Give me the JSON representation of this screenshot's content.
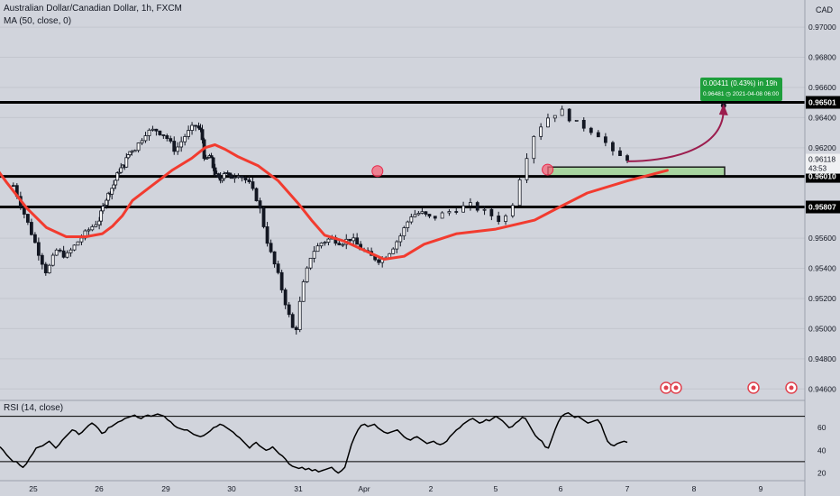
{
  "header": {
    "title": "Australian Dollar/Canadian Dollar, 1h, FXCM",
    "ma_label": "MA (50, close, 0)",
    "rsi_label": "RSI (14, close)",
    "currency": "CAD"
  },
  "colors": {
    "background": "#d1d4dc",
    "ma_line": "#f23b2f",
    "candle": "#131722",
    "level_line": "#000000",
    "zone_fill": "#a8d5a0",
    "zone_border": "#1a1a1a",
    "projection_arrow": "#9c1d4e",
    "measure_box": "#1e9e3c",
    "rsi_line": "#000000"
  },
  "measure": {
    "line1": "0.00411 (0.43%) in 19h",
    "line2": "0.96481",
    "line2_extra": "2021-04-08  06:00"
  },
  "chart_data": [
    {
      "type": "candlestick",
      "title": "Australian Dollar/Canadian Dollar, 1h, FXCM",
      "x_tick_labels": [
        "25",
        "26",
        "29",
        "30",
        "31",
        "Apr",
        "2",
        "5",
        "6",
        "7",
        "8",
        "9"
      ],
      "y_tick_labels": [
        "0.97000",
        "0.96800",
        "0.96600",
        "0.96400",
        "0.96200",
        "0.95600",
        "0.95400",
        "0.95200",
        "0.95000",
        "0.94800",
        "0.94600"
      ],
      "y_ticks": [
        0.97,
        0.968,
        0.966,
        0.964,
        0.962,
        0.956,
        0.954,
        0.952,
        0.95,
        0.948,
        0.946
      ],
      "ylim": [
        0.9453,
        0.9718
      ],
      "horizontal_levels": [
        {
          "value": 0.96501,
          "label": "0.96501"
        },
        {
          "value": 0.9601,
          "label": "0.96010"
        },
        {
          "value": 0.95807,
          "label": "0.95807"
        }
      ],
      "last_price": {
        "value": 0.96118,
        "label": "0.96118",
        "countdown": "43:53"
      },
      "zone": {
        "low": 0.9601,
        "high": 0.96072
      },
      "close_path": [
        [
          24.7,
          0.9595
        ],
        [
          24.9,
          0.9572
        ],
        [
          25.1,
          0.9548
        ],
        [
          25.2,
          0.9537
        ],
        [
          25.35,
          0.9552
        ],
        [
          25.5,
          0.9548
        ],
        [
          25.7,
          0.9559
        ],
        [
          25.85,
          0.9566
        ],
        [
          26.0,
          0.9572
        ],
        [
          26.15,
          0.9583
        ],
        [
          26.3,
          0.959
        ],
        [
          26.45,
          0.9596
        ],
        [
          26.6,
          0.9605
        ],
        [
          26.75,
          0.9608
        ],
        [
          26.9,
          0.9617
        ],
        [
          27.05,
          0.962
        ],
        [
          27.2,
          0.963
        ],
        [
          27.35,
          0.9632
        ],
        [
          27.5,
          0.9628
        ],
        [
          27.65,
          0.9618
        ],
        [
          27.8,
          0.9628
        ],
        [
          27.95,
          0.9635
        ],
        [
          28.1,
          0.963
        ],
        [
          28.2,
          0.961
        ],
        [
          28.35,
          0.9615
        ],
        [
          28.5,
          0.9603
        ],
        [
          28.65,
          0.9598
        ],
        [
          28.8,
          0.9605
        ],
        [
          28.95,
          0.96
        ],
        [
          29.1,
          0.9603
        ],
        [
          29.25,
          0.9597
        ],
        [
          29.4,
          0.9584
        ],
        [
          29.55,
          0.9555
        ],
        [
          29.7,
          0.9535
        ],
        [
          29.85,
          0.951
        ],
        [
          29.95,
          0.9495
        ],
        [
          30.05,
          0.9525
        ],
        [
          30.2,
          0.955
        ],
        [
          30.35,
          0.9557
        ],
        [
          30.5,
          0.956
        ],
        [
          30.65,
          0.9557
        ],
        [
          30.8,
          0.956
        ],
        [
          30.95,
          0.9553
        ],
        [
          31.1,
          0.9548
        ],
        [
          31.25,
          0.9545
        ],
        [
          31.4,
          0.9552
        ],
        [
          31.55,
          0.9562
        ],
        [
          31.7,
          0.9575
        ],
        [
          31.85,
          0.9577
        ],
        [
          32.0,
          0.9573
        ],
        [
          32.15,
          0.9578
        ],
        [
          32.3,
          0.9582
        ],
        [
          32.45,
          0.9576
        ],
        [
          32.55,
          0.9571
        ],
        [
          32.62,
          0.958
        ],
        [
          32.7,
          0.9605
        ],
        [
          32.8,
          0.963
        ],
        [
          32.9,
          0.964
        ],
        [
          33.0,
          0.9645
        ],
        [
          33.1,
          0.9637
        ],
        [
          33.2,
          0.9633
        ],
        [
          33.3,
          0.9628
        ],
        [
          33.4,
          0.9615
        ],
        [
          33.5,
          0.9613
        ]
      ],
      "ma_path": [
        [
          24.0,
          0.963
        ],
        [
          24.3,
          0.9615
        ],
        [
          24.6,
          0.9597
        ],
        [
          24.9,
          0.958
        ],
        [
          25.2,
          0.9567
        ],
        [
          25.5,
          0.9561
        ],
        [
          25.8,
          0.9561
        ],
        [
          26.1,
          0.9563
        ],
        [
          26.4,
          0.9568
        ],
        [
          26.7,
          0.9575
        ],
        [
          27.0,
          0.9585
        ],
        [
          27.3,
          0.9595
        ],
        [
          27.6,
          0.9605
        ],
        [
          27.9,
          0.9613
        ],
        [
          28.2,
          0.962
        ],
        [
          28.5,
          0.9622
        ],
        [
          28.8,
          0.9619
        ],
        [
          29.1,
          0.9614
        ],
        [
          29.4,
          0.9608
        ],
        [
          29.7,
          0.9598
        ],
        [
          30.0,
          0.9583
        ],
        [
          30.2,
          0.9572
        ],
        [
          30.4,
          0.9562
        ],
        [
          30.7,
          0.9558
        ],
        [
          31.0,
          0.9552
        ],
        [
          31.3,
          0.9546
        ],
        [
          31.6,
          0.9548
        ],
        [
          31.9,
          0.9556
        ],
        [
          32.2,
          0.9563
        ],
        [
          32.5,
          0.9566
        ],
        [
          32.8,
          0.9572
        ],
        [
          33.0,
          0.9581
        ],
        [
          33.2,
          0.959
        ],
        [
          33.5,
          0.9598
        ],
        [
          33.8,
          0.9605
        ]
      ],
      "projection": {
        "from": [
          33.5,
          0.9611
        ],
        "to": [
          34.2,
          0.9648
        ]
      },
      "markers": [
        [
          31.2,
          0.96045
        ],
        [
          32.9,
          0.96055
        ]
      ]
    },
    {
      "type": "line",
      "title": "RSI (14, close)",
      "y_tick_labels": [
        "60",
        "40",
        "20"
      ],
      "y_ticks": [
        60,
        40,
        20
      ],
      "ylim": [
        14,
        84
      ],
      "bands": [
        70,
        30
      ],
      "values": [
        43,
        40,
        36,
        33,
        30,
        30,
        27,
        25,
        28,
        33,
        37,
        42,
        43,
        44,
        46,
        48,
        45,
        42,
        45,
        49,
        52,
        55,
        58,
        57,
        54,
        56,
        59,
        62,
        64,
        62,
        59,
        55,
        56,
        60,
        61,
        63,
        65,
        66,
        68,
        69,
        70,
        71,
        69,
        68,
        70,
        71,
        70,
        71,
        72,
        71,
        70,
        67,
        65,
        62,
        60,
        59,
        58,
        58,
        56,
        54,
        53,
        52,
        53,
        55,
        57,
        60,
        61,
        63,
        62,
        60,
        58,
        56,
        53,
        51,
        48,
        45,
        42,
        45,
        47,
        44,
        42,
        40,
        41,
        43,
        40,
        37,
        35,
        32,
        28,
        26,
        25,
        24,
        25,
        23,
        24,
        22,
        23,
        21,
        22,
        23,
        24,
        25,
        22,
        20,
        22,
        25,
        35,
        45,
        52,
        58,
        62,
        63,
        61,
        62,
        63,
        60,
        58,
        56,
        55,
        56,
        57,
        58,
        55,
        52,
        50,
        49,
        51,
        52,
        50,
        48,
        46,
        47,
        48,
        46,
        45,
        46,
        48,
        52,
        55,
        58,
        60,
        63,
        65,
        67,
        68,
        66,
        64,
        65,
        67,
        66,
        68,
        70,
        68,
        66,
        63,
        60,
        61,
        64,
        66,
        69,
        68,
        63,
        58,
        53,
        50,
        48,
        43,
        42,
        50,
        58,
        65,
        70,
        72,
        73,
        71,
        69,
        70,
        68,
        66,
        64,
        65,
        66,
        67,
        63,
        55,
        48,
        45,
        44,
        46,
        47,
        48,
        47
      ]
    }
  ]
}
